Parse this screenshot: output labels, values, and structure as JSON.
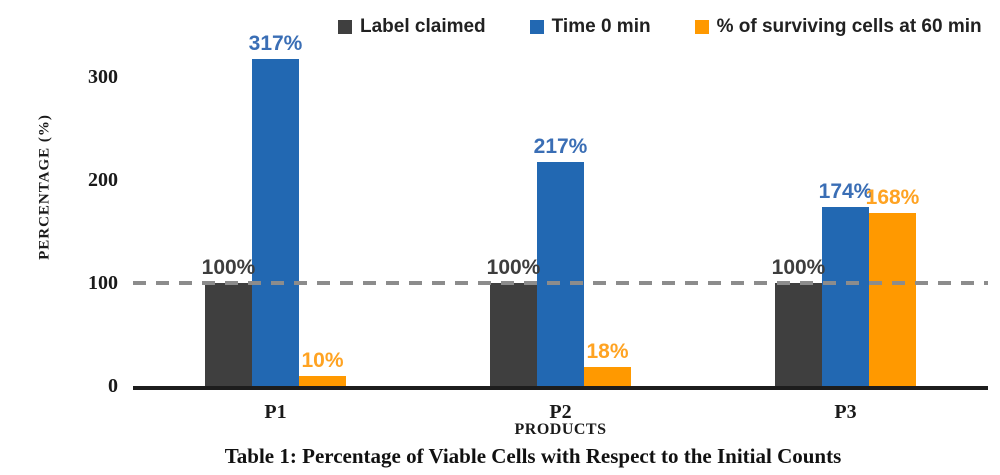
{
  "figure": {
    "caption": "Table 1: Percentage of Viable Cells with Respect to the Initial Counts"
  },
  "chart_data": {
    "type": "bar",
    "title": "",
    "xlabel": "PRODUCTS",
    "ylabel": "PERCENTAGE (%)",
    "categories": [
      "P1",
      "P2",
      "P3"
    ],
    "series": [
      {
        "name": "Label claimed",
        "color": "#3f3f3f",
        "label_color": "#3d3d3d",
        "values": [
          100,
          100,
          100
        ],
        "labels": [
          "100%",
          "100%",
          "100%"
        ]
      },
      {
        "name": "Time 0 min",
        "color": "#2268b2",
        "label_color": "#3a6eb5",
        "values": [
          317,
          217,
          174
        ],
        "labels": [
          "317%",
          "217%",
          "174%"
        ]
      },
      {
        "name": "% of surviving cells at 60 min",
        "color": "#ff9900",
        "label_color": "#ffa322",
        "values": [
          10,
          18,
          168
        ],
        "labels": [
          "10%",
          "18%",
          "168%"
        ]
      }
    ],
    "ylim": [
      0,
      320
    ],
    "yticks": [
      0,
      100,
      200,
      300
    ],
    "reference_line": 100,
    "grid": "dashed horizontal reference line at 100 only",
    "legend_position": "top"
  }
}
